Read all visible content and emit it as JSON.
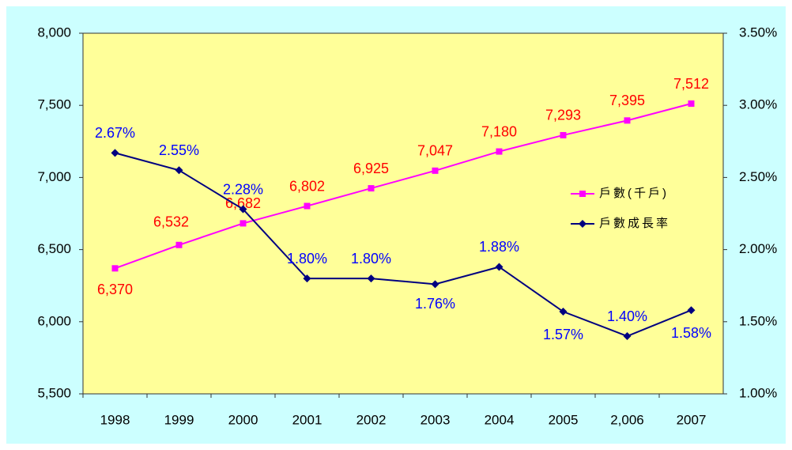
{
  "chart_data": {
    "type": "line",
    "categories": [
      "1998",
      "1999",
      "2000",
      "2001",
      "2002",
      "2003",
      "2004",
      "2005",
      "2,006",
      "2007"
    ],
    "series": [
      {
        "name": "戶數(千戶)",
        "color": "#ff00ff",
        "label_color": "#ff0000",
        "values": [
          6370,
          6532,
          6682,
          6802,
          6925,
          7047,
          7180,
          7293,
          7395,
          7512
        ],
        "value_labels": [
          "6,370",
          "6,532",
          "6,682",
          "6,802",
          "6,925",
          "7,047",
          "7,180",
          "7,293",
          "7,395",
          "7,512"
        ]
      },
      {
        "name": "戶數成長率",
        "color": "#000080",
        "label_color": "#0000ff",
        "axis": "y2",
        "values": [
          2.67,
          2.55,
          2.28,
          1.8,
          1.8,
          1.76,
          1.88,
          1.57,
          1.4,
          1.58
        ],
        "value_labels": [
          "2.67%",
          "2.55%",
          "2.28%",
          "1.80%",
          "1.80%",
          "1.76%",
          "1.88%",
          "1.57%",
          "1.40%",
          "1.58%"
        ]
      }
    ],
    "ylim": [
      5500,
      8000
    ],
    "yticks": [
      {
        "value": 5500,
        "label": "5,500"
      },
      {
        "value": 6000,
        "label": "6,000"
      },
      {
        "value": 6500,
        "label": "6,500"
      },
      {
        "value": 7000,
        "label": "7,000"
      },
      {
        "value": 7500,
        "label": "7,500"
      },
      {
        "value": 8000,
        "label": "8,000"
      }
    ],
    "y2lim": [
      1,
      3.5
    ],
    "y2ticks": [
      {
        "value": 1,
        "label": "1.00%"
      },
      {
        "value": 1.5,
        "label": "1.50%"
      },
      {
        "value": 2,
        "label": "2.00%"
      },
      {
        "value": 2.5,
        "label": "2.50%"
      },
      {
        "value": 3,
        "label": "3.00%"
      },
      {
        "value": 3.5,
        "label": "3.50%"
      }
    ]
  }
}
